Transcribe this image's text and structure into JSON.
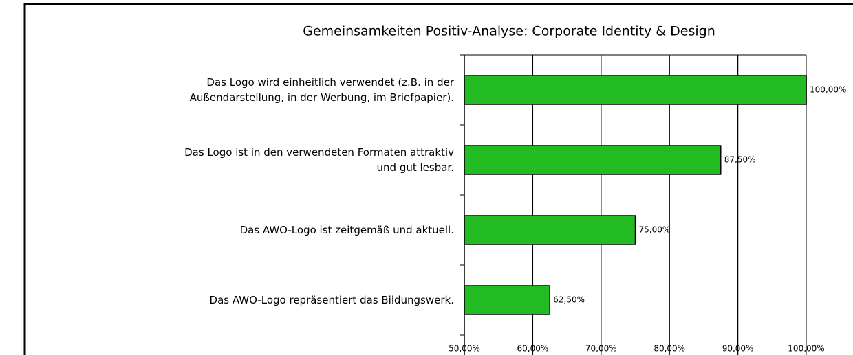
{
  "chart_data": {
    "type": "barh",
    "title": "Gemeinsamkeiten Positiv-Analyse: Corporate Identity & Design",
    "categories": [
      [
        "Das Logo wird einheitlich verwendet (z.B. in der",
        "Außendarstellung, in der Werbung, im Briefpapier)."
      ],
      [
        "Das Logo ist in den verwendeten Formaten attraktiv",
        "und gut lesbar."
      ],
      [
        "Das AWO-Logo ist zeitgemäß und aktuell."
      ],
      [
        "Das AWO-Logo repräsentiert das Bildungswerk."
      ]
    ],
    "values": [
      100,
      87.5,
      75,
      62.5
    ],
    "value_labels": [
      "100,00%",
      "87,50%",
      "75,00%",
      "62,50%"
    ],
    "color": "#22bb22",
    "xlim": [
      50,
      100
    ],
    "xticks": [
      {
        "value": 50,
        "label": "50,00%"
      },
      {
        "value": 60,
        "label": "60,00%"
      },
      {
        "value": 70,
        "label": "70,00%"
      },
      {
        "value": 80,
        "label": "80,00%"
      },
      {
        "value": 90,
        "label": "90,00%"
      },
      {
        "value": 100,
        "label": "100,00%"
      }
    ],
    "grid": true
  }
}
